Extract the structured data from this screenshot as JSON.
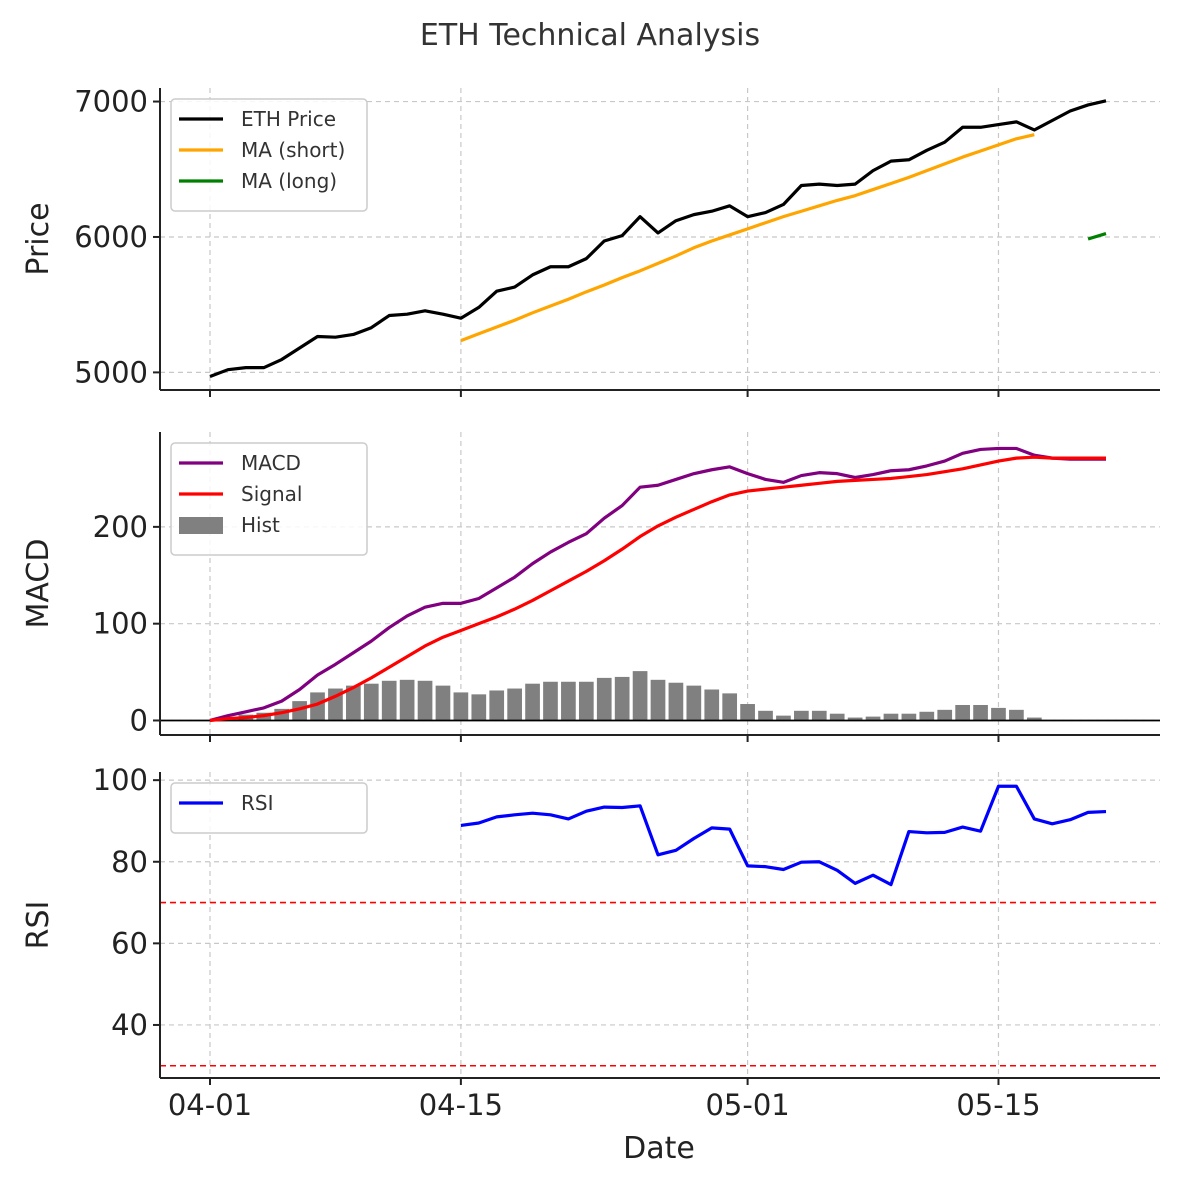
{
  "chart_data": {
    "title": "ETH Technical Analysis",
    "type": "line",
    "x_dates": [
      "04-01",
      "04-02",
      "04-03",
      "04-04",
      "04-05",
      "04-06",
      "04-07",
      "04-08",
      "04-09",
      "04-10",
      "04-11",
      "04-12",
      "04-13",
      "04-14",
      "04-15",
      "04-16",
      "04-17",
      "04-18",
      "04-19",
      "04-20",
      "04-21",
      "04-22",
      "04-23",
      "04-24",
      "04-25",
      "04-26",
      "04-27",
      "04-28",
      "04-29",
      "04-30",
      "05-01",
      "05-02",
      "05-03",
      "05-04",
      "05-05",
      "05-06",
      "05-07",
      "05-08",
      "05-09",
      "05-10",
      "05-11",
      "05-12",
      "05-13",
      "05-14",
      "05-15",
      "05-16",
      "05-17",
      "05-18",
      "05-19",
      "05-20",
      "05-21"
    ],
    "xlabel": "Date",
    "x_ticks": [
      {
        "label": "04-01",
        "index": 0
      },
      {
        "label": "04-15",
        "index": 14
      },
      {
        "label": "05-01",
        "index": 30
      },
      {
        "label": "05-15",
        "index": 44
      }
    ],
    "panels": [
      {
        "id": "price",
        "ylabel": "Price",
        "ylim": [
          4870,
          7100
        ],
        "yticks": [
          5000,
          6000,
          7000
        ],
        "legend_position": "upper-left",
        "series": [
          {
            "name": "ETH Price",
            "color": "#000000",
            "start": 0,
            "values": [
              4970,
              5020,
              5035,
              5035,
              5095,
              5180,
              5265,
              5260,
              5280,
              5330,
              5420,
              5430,
              5455,
              5430,
              5400,
              5480,
              5600,
              5630,
              5720,
              5780,
              5780,
              5840,
              5970,
              6010,
              6150,
              6030,
              6120,
              6165,
              6190,
              6230,
              6150,
              6180,
              6240,
              6380,
              6390,
              6380,
              6390,
              6490,
              6560,
              6570,
              6640,
              6700,
              6810,
              6810,
              6830,
              6850,
              6790,
              6860,
              6930,
              6975,
              7005
            ]
          },
          {
            "name": "MA (short)",
            "color": "#ffa500",
            "start": 14,
            "values": [
              5235,
              5285,
              5335,
              5385,
              5440,
              5490,
              5540,
              5595,
              5645,
              5700,
              5750,
              5805,
              5860,
              5920,
              5970,
              6015,
              6060,
              6105,
              6150,
              6190,
              6230,
              6270,
              6305,
              6350,
              6395,
              6440,
              6490,
              6540,
              6590,
              6635,
              6680,
              6725,
              6755
            ]
          },
          {
            "name": "MA (long)",
            "color": "#008000",
            "start": 49,
            "values": [
              5985,
              6025
            ]
          }
        ]
      },
      {
        "id": "macd",
        "ylabel": "MACD",
        "ylim": [
          -15,
          298
        ],
        "yticks": [
          0,
          100,
          200
        ],
        "legend_position": "upper-left",
        "zero_line": true,
        "series": [
          {
            "name": "MACD",
            "color": "#800080",
            "start": 0,
            "values": [
              0,
              5,
              9,
              13,
              20,
              32,
              47,
              58,
              70,
              82,
              96,
              108,
              117,
              121,
              121,
              126,
              137,
              148,
              162,
              174,
              184,
              193,
              209,
              222,
              241,
              243,
              249,
              255,
              259,
              262,
              255,
              249,
              246,
              253,
              256,
              255,
              251,
              254,
              258,
              259,
              263,
              268,
              276,
              280,
              281,
              281,
              274,
              271,
              270,
              270,
              270
            ]
          },
          {
            "name": "Signal",
            "color": "#ff0000",
            "start": 0,
            "values": [
              0,
              2,
              3,
              5,
              8,
              12,
              17,
              25,
              34,
              44,
              55,
              66,
              77,
              86,
              93,
              100,
              107,
              115,
              124,
              134,
              144,
              154,
              165,
              177,
              190,
              201,
              210,
              218,
              226,
              233,
              237,
              239,
              241,
              243,
              245,
              247,
              248,
              249,
              250,
              252,
              254,
              257,
              260,
              264,
              268,
              271,
              272,
              271,
              271,
              271,
              271
            ]
          },
          {
            "name": "Hist",
            "color": "#808080",
            "type": "bar",
            "start": 0,
            "values": [
              0,
              3,
              6,
              8,
              12,
              20,
              29,
              33,
              36,
              38,
              41,
              42,
              41,
              36,
              29,
              27,
              31,
              33,
              38,
              40,
              40,
              40,
              44,
              45,
              51,
              42,
              39,
              36,
              32,
              28,
              17,
              10,
              5,
              10,
              10,
              7,
              3,
              4,
              7,
              7,
              9,
              11,
              16,
              16,
              13,
              11,
              3,
              0,
              0,
              0,
              0
            ]
          }
        ]
      },
      {
        "id": "rsi",
        "ylabel": "RSI",
        "ylim": [
          27,
          102
        ],
        "yticks": [
          40,
          60,
          80,
          100
        ],
        "legend_position": "upper-left",
        "hlines": [
          70,
          30
        ],
        "hline_color": "#ff0000",
        "series": [
          {
            "name": "RSI",
            "color": "#0000ff",
            "start": 14,
            "values": [
              88.9,
              89.5,
              91.0,
              91.5,
              91.9,
              91.5,
              90.5,
              92.4,
              93.4,
              93.3,
              93.7,
              81.7,
              82.8,
              85.7,
              88.3,
              88.0,
              79.0,
              78.8,
              78.1,
              79.9,
              80.0,
              77.9,
              74.7,
              76.7,
              74.4,
              87.4,
              87.1,
              87.2,
              88.5,
              87.5,
              98.5,
              98.5,
              90.5,
              89.3,
              90.3,
              92.1,
              92.3
            ]
          }
        ]
      }
    ]
  }
}
